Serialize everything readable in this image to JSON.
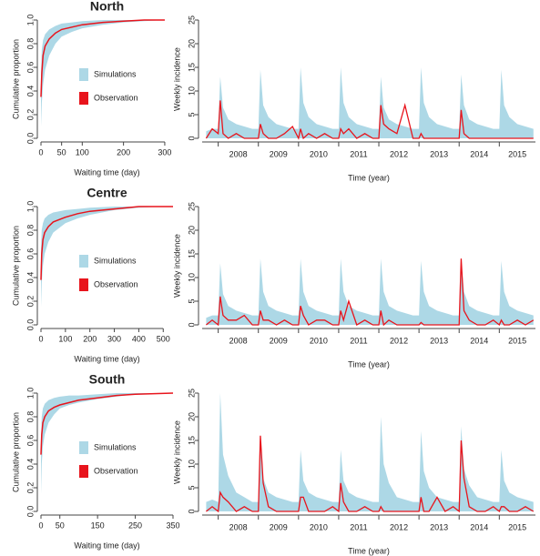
{
  "chart_data": [
    {
      "type": "band",
      "title": "North",
      "x_label": "Waiting time (day)",
      "y_label": "Cumulative proportion",
      "x": [
        0,
        2,
        5,
        10,
        20,
        35,
        50,
        75,
        100,
        150,
        200,
        250,
        300
      ],
      "series": [
        {
          "name": "Simulations",
          "color": "#add8e6",
          "lower": [
            0.1,
            0.3,
            0.45,
            0.58,
            0.7,
            0.8,
            0.86,
            0.9,
            0.93,
            0.96,
            0.98,
            0.99,
            1
          ],
          "upper": [
            0.55,
            0.75,
            0.83,
            0.88,
            0.92,
            0.95,
            0.97,
            0.98,
            0.99,
            1,
            1,
            1,
            1
          ]
        },
        {
          "name": "Observation",
          "color": "#e8141c",
          "values": [
            0.35,
            0.55,
            0.7,
            0.78,
            0.84,
            0.89,
            0.92,
            0.94,
            0.96,
            0.98,
            0.99,
            1,
            1
          ]
        }
      ],
      "xlim": [
        0,
        320
      ],
      "xticks": [
        0,
        50,
        100,
        200,
        300
      ],
      "ylim": [
        0,
        1
      ],
      "yticks": [
        {
          "value": 0,
          "label": "0.0"
        },
        0.2,
        0.4,
        0.6,
        0.8,
        {
          "value": 1,
          "label": "1.0"
        }
      ]
    },
    {
      "type": "area",
      "x_label": "Time (year)",
      "y_label": "Weekly incidence",
      "x": [
        2007.7,
        2007.85,
        2008,
        2008.05,
        2008.12,
        2008.25,
        2008.45,
        2008.65,
        2008.85,
        2009,
        2009.05,
        2009.12,
        2009.25,
        2009.45,
        2009.65,
        2009.85,
        2010,
        2010.05,
        2010.12,
        2010.25,
        2010.45,
        2010.65,
        2010.85,
        2011,
        2011.05,
        2011.12,
        2011.25,
        2011.45,
        2011.65,
        2011.85,
        2012,
        2012.05,
        2012.12,
        2012.25,
        2012.45,
        2012.65,
        2012.85,
        2013,
        2013.05,
        2013.12,
        2013.25,
        2013.45,
        2013.65,
        2013.85,
        2014,
        2014.05,
        2014.12,
        2014.25,
        2014.45,
        2014.65,
        2014.85,
        2015,
        2015.05,
        2015.12,
        2015.25,
        2015.45,
        2015.65,
        2015.85
      ],
      "series": [
        {
          "name": "Simulations",
          "color": "#add8e6",
          "values": [
            1.5,
            2,
            2,
            13,
            6.5,
            4,
            3,
            2.5,
            2,
            2,
            14.5,
            7,
            4.5,
            3,
            2.5,
            2,
            2,
            15,
            7.5,
            4.5,
            3,
            2.5,
            2,
            2,
            15,
            7.5,
            4.5,
            3,
            2.5,
            2,
            2,
            13,
            6.5,
            4,
            3,
            2.5,
            2,
            2,
            15,
            7.5,
            4.5,
            3,
            2.5,
            2,
            2,
            13.5,
            7,
            4,
            3,
            2.5,
            2,
            2,
            14.5,
            7,
            4.5,
            3,
            2.5,
            2
          ]
        },
        {
          "name": "Observation",
          "color": "#e8141c",
          "values": [
            0,
            2,
            1,
            8,
            1,
            0,
            1,
            0,
            0,
            0,
            3,
            1,
            0,
            0,
            1,
            2.5,
            0,
            2,
            0,
            1,
            0,
            1,
            0,
            0,
            2,
            1,
            2,
            0,
            1,
            0,
            0,
            7,
            3,
            2,
            1,
            7,
            0,
            0,
            1,
            0,
            0,
            0,
            0,
            0,
            0,
            6,
            1,
            0,
            0,
            0,
            0,
            0,
            0,
            0,
            0,
            0,
            0,
            0
          ]
        }
      ],
      "xlim": [
        2007.6,
        2015.9
      ],
      "year_breaks": [
        2008,
        2009,
        2010,
        2011,
        2012,
        2013,
        2014,
        2015
      ],
      "year_labels": [
        "2008",
        "2009",
        "2010",
        "2011",
        "2012",
        "2013",
        "2014",
        "2015"
      ],
      "ylim": [
        0,
        25
      ],
      "yticks": [
        0,
        5,
        10,
        15,
        20,
        25
      ]
    },
    {
      "type": "band",
      "title": "Centre",
      "x_label": "Waiting time (day)",
      "y_label": "Cumulative proportion",
      "x": [
        0,
        3,
        8,
        15,
        30,
        50,
        100,
        150,
        200,
        300,
        400,
        500,
        540
      ],
      "series": [
        {
          "name": "Simulations",
          "color": "#add8e6",
          "lower": [
            0.15,
            0.35,
            0.5,
            0.6,
            0.7,
            0.78,
            0.86,
            0.9,
            0.93,
            0.97,
            0.99,
            1,
            1
          ],
          "upper": [
            0.65,
            0.8,
            0.86,
            0.9,
            0.93,
            0.95,
            0.97,
            0.98,
            0.99,
            1,
            1,
            1,
            1
          ]
        },
        {
          "name": "Observation",
          "color": "#e8141c",
          "values": [
            0.38,
            0.6,
            0.72,
            0.78,
            0.83,
            0.87,
            0.91,
            0.94,
            0.96,
            0.98,
            1,
            1,
            1
          ]
        }
      ],
      "xlim": [
        0,
        540
      ],
      "xticks": [
        0,
        100,
        200,
        300,
        400,
        500
      ],
      "ylim": [
        0,
        1
      ],
      "yticks": [
        {
          "value": 0,
          "label": "0.0"
        },
        0.2,
        0.4,
        0.6,
        0.8,
        {
          "value": 1,
          "label": "1.0"
        }
      ]
    },
    {
      "type": "area",
      "x_label": "Time (year)",
      "y_label": "Weekly incidence",
      "x": [
        2007.7,
        2007.85,
        2008,
        2008.05,
        2008.12,
        2008.25,
        2008.45,
        2008.65,
        2008.85,
        2009,
        2009.05,
        2009.12,
        2009.25,
        2009.45,
        2009.65,
        2009.85,
        2010,
        2010.05,
        2010.12,
        2010.25,
        2010.45,
        2010.65,
        2010.85,
        2011,
        2011.05,
        2011.12,
        2011.25,
        2011.45,
        2011.65,
        2011.85,
        2012,
        2012.05,
        2012.12,
        2012.25,
        2012.45,
        2012.65,
        2012.85,
        2013,
        2013.05,
        2013.12,
        2013.25,
        2013.45,
        2013.65,
        2013.85,
        2014,
        2014.05,
        2014.12,
        2014.25,
        2014.45,
        2014.65,
        2014.85,
        2015,
        2015.05,
        2015.12,
        2015.25,
        2015.45,
        2015.65,
        2015.85
      ],
      "series": [
        {
          "name": "Simulations",
          "color": "#add8e6",
          "values": [
            1.5,
            2,
            2,
            13,
            6.5,
            4,
            3,
            2.5,
            2,
            2,
            14,
            7,
            4,
            3,
            2.5,
            2,
            2,
            14,
            7,
            4,
            3,
            2.5,
            2,
            2,
            14,
            7,
            4,
            3,
            2.5,
            2,
            2,
            14,
            7,
            4,
            3,
            2.5,
            2,
            2,
            13.5,
            7,
            4,
            3,
            2.5,
            2,
            2,
            14,
            7,
            4,
            3,
            2.5,
            2,
            2,
            13.5,
            7,
            4,
            3,
            2.5,
            2
          ]
        },
        {
          "name": "Observation",
          "color": "#e8141c",
          "values": [
            0,
            1,
            0,
            6,
            2,
            1,
            1,
            2,
            0,
            0,
            3,
            1,
            1,
            0,
            1,
            0,
            0,
            4,
            2,
            0,
            1,
            1,
            0,
            0,
            3,
            1,
            5,
            0,
            1,
            0,
            0,
            3,
            0,
            1,
            0,
            0,
            0,
            0,
            0.5,
            0,
            0,
            0,
            0,
            0,
            0,
            14,
            3,
            1,
            0,
            0,
            1,
            0,
            1,
            0,
            0,
            1,
            0,
            1
          ]
        }
      ],
      "xlim": [
        2007.6,
        2015.9
      ],
      "year_breaks": [
        2008,
        2009,
        2010,
        2011,
        2012,
        2013,
        2014,
        2015
      ],
      "year_labels": [
        "2008",
        "2009",
        "2010",
        "2011",
        "2012",
        "2013",
        "2014",
        "2015"
      ],
      "ylim": [
        0,
        25
      ],
      "yticks": [
        0,
        5,
        10,
        15,
        20,
        25
      ]
    },
    {
      "type": "band",
      "title": "South",
      "x_label": "Waiting time (day)",
      "y_label": "Cumulative proportion",
      "x": [
        0,
        2,
        5,
        10,
        20,
        35,
        50,
        75,
        100,
        150,
        200,
        250,
        350
      ],
      "series": [
        {
          "name": "Simulations",
          "color": "#add8e6",
          "lower": [
            0.15,
            0.4,
            0.55,
            0.65,
            0.75,
            0.82,
            0.87,
            0.9,
            0.92,
            0.95,
            0.97,
            0.99,
            1
          ],
          "upper": [
            0.6,
            0.8,
            0.87,
            0.91,
            0.94,
            0.96,
            0.97,
            0.98,
            0.98,
            0.99,
            1,
            1,
            1
          ]
        },
        {
          "name": "Observation",
          "color": "#e8141c",
          "values": [
            0.48,
            0.65,
            0.75,
            0.8,
            0.85,
            0.88,
            0.9,
            0.92,
            0.94,
            0.96,
            0.98,
            0.99,
            1
          ]
        }
      ],
      "xlim": [
        0,
        350
      ],
      "xticks": [
        0,
        50,
        150,
        250,
        350
      ],
      "ylim": [
        0,
        1
      ],
      "yticks": [
        {
          "value": 0,
          "label": "0.0"
        },
        0.2,
        0.4,
        0.6,
        0.8,
        {
          "value": 1,
          "label": "1.0"
        }
      ]
    },
    {
      "type": "area",
      "x_label": "Time (year)",
      "y_label": "Weekly incidence",
      "x": [
        2007.7,
        2007.85,
        2008,
        2008.05,
        2008.12,
        2008.25,
        2008.45,
        2008.65,
        2008.85,
        2009,
        2009.05,
        2009.12,
        2009.25,
        2009.45,
        2009.65,
        2009.85,
        2010,
        2010.05,
        2010.12,
        2010.25,
        2010.45,
        2010.65,
        2010.85,
        2011,
        2011.05,
        2011.12,
        2011.25,
        2011.45,
        2011.65,
        2011.85,
        2012,
        2012.05,
        2012.12,
        2012.25,
        2012.45,
        2012.65,
        2012.85,
        2013,
        2013.05,
        2013.12,
        2013.25,
        2013.45,
        2013.65,
        2013.85,
        2014,
        2014.05,
        2014.12,
        2014.25,
        2014.45,
        2014.65,
        2014.85,
        2015,
        2015.05,
        2015.12,
        2015.25,
        2015.45,
        2015.65,
        2015.85
      ],
      "series": [
        {
          "name": "Simulations",
          "color": "#add8e6",
          "values": [
            2,
            2.5,
            2,
            25,
            12,
            7.5,
            4,
            3,
            2,
            2,
            16,
            7,
            4,
            3,
            2.5,
            2,
            2,
            13,
            6.5,
            4,
            3,
            2.5,
            2,
            2,
            13,
            6.5,
            4,
            3,
            2.5,
            2,
            2,
            20,
            10,
            6,
            3,
            2.5,
            2,
            2,
            17,
            8.5,
            5,
            3,
            2.5,
            2,
            2,
            18,
            9,
            5.5,
            3,
            2.5,
            2,
            2,
            13,
            6.5,
            4,
            3,
            2.5,
            2
          ]
        },
        {
          "name": "Observation",
          "color": "#e8141c",
          "values": [
            0,
            1,
            0,
            4,
            3,
            2,
            0,
            1,
            0,
            0,
            16,
            6,
            1,
            0,
            0,
            0,
            0,
            3,
            3,
            0,
            0,
            0,
            1,
            0,
            6,
            2,
            0,
            0,
            1,
            0,
            0,
            1,
            0,
            0,
            0,
            0,
            0,
            0,
            3,
            0,
            0,
            3,
            0,
            1,
            0,
            15,
            7,
            1,
            0,
            0,
            1,
            0,
            1,
            1,
            0,
            0,
            1,
            0
          ]
        }
      ],
      "xlim": [
        2007.6,
        2015.9
      ],
      "year_breaks": [
        2008,
        2009,
        2010,
        2011,
        2012,
        2013,
        2014,
        2015
      ],
      "year_labels": [
        "2008",
        "2009",
        "2010",
        "2011",
        "2012",
        "2013",
        "2014",
        "2015"
      ],
      "ylim": [
        0,
        25
      ],
      "yticks": [
        0,
        5,
        10,
        15,
        20,
        25
      ]
    }
  ]
}
